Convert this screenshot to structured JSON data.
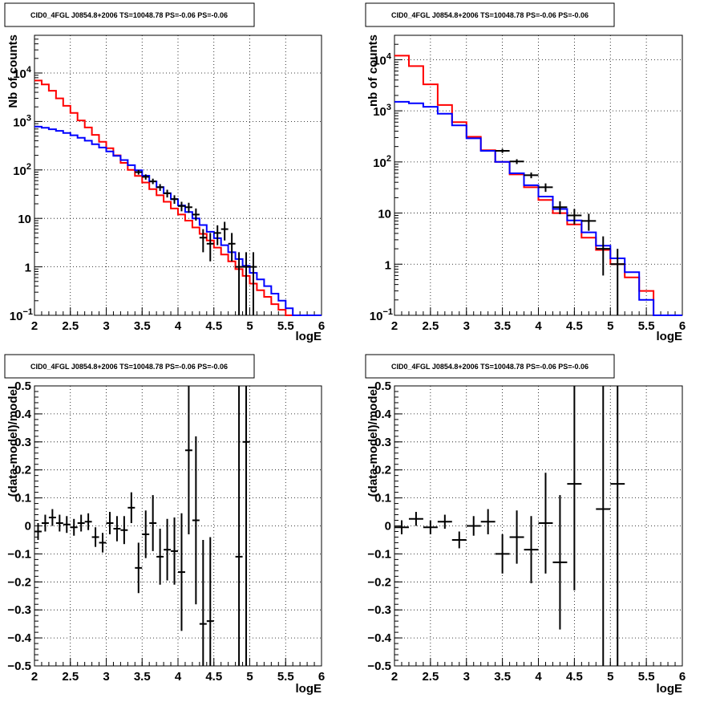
{
  "chart_data": [
    {
      "type": "step-histogram",
      "panel": "top-left",
      "title": "CID0_4FGL J0854.8+2006 TS=10048.78 PS=-0.06 PS=-0.06",
      "xlabel": "logE",
      "ylabel": "Nb of counts",
      "xlim": [
        2,
        6
      ],
      "ylim": [
        0.1,
        60000
      ],
      "yscale": "log",
      "grid": true,
      "x_ticks": [
        "2",
        "2.5",
        "3",
        "3.5",
        "4",
        "4.5",
        "5",
        "5.5",
        "6"
      ],
      "y_ticks": [
        {
          "v": 0.1,
          "m": "10",
          "e": "−1"
        },
        {
          "v": 1,
          "m": "1",
          "e": ""
        },
        {
          "v": 10,
          "m": "10",
          "e": ""
        },
        {
          "v": 100,
          "m": "10",
          "e": "2"
        },
        {
          "v": 1000,
          "m": "10",
          "e": "3"
        },
        {
          "v": 10000,
          "m": "10",
          "e": "4"
        }
      ],
      "series": [
        {
          "color": "#ff0000",
          "bin_width": 0.1,
          "x_start": 2.0,
          "values": [
            7000,
            5800,
            4300,
            3000,
            2100,
            1500,
            1050,
            750,
            530,
            380,
            280,
            200,
            140,
            100,
            75,
            55,
            40,
            30,
            22,
            16,
            12,
            9,
            6.5,
            4.8,
            3.5,
            2.5,
            1.8,
            1.3,
            0.9,
            0.65,
            0.45,
            0.33,
            0.24,
            0.17,
            0.13,
            0.1,
            0.1,
            0.1,
            0.1,
            0.1
          ]
        },
        {
          "color": "#0000ff",
          "bin_width": 0.1,
          "x_start": 2.0,
          "values": [
            780,
            740,
            690,
            640,
            580,
            520,
            460,
            400,
            340,
            290,
            240,
            195,
            160,
            125,
            98,
            76,
            58,
            44,
            33,
            25,
            18.5,
            13.5,
            10,
            7.3,
            5.3,
            3.9,
            2.8,
            2.0,
            1.45,
            1.05,
            0.75,
            0.55,
            0.4,
            0.28,
            0.2,
            0.14,
            0.1,
            0.1,
            0.1,
            0.1
          ]
        }
      ],
      "points": [
        {
          "x": 3.45,
          "xerr": 0.05,
          "y": 90,
          "ylo": 80,
          "yhi": 100
        },
        {
          "x": 3.55,
          "xerr": 0.05,
          "y": 72,
          "ylo": 63,
          "yhi": 81
        },
        {
          "x": 3.65,
          "xerr": 0.05,
          "y": 58,
          "ylo": 51,
          "yhi": 66
        },
        {
          "x": 3.75,
          "xerr": 0.05,
          "y": 44,
          "ylo": 37,
          "yhi": 51
        },
        {
          "x": 3.85,
          "xerr": 0.05,
          "y": 33,
          "ylo": 27,
          "yhi": 39
        },
        {
          "x": 3.95,
          "xerr": 0.05,
          "y": 25,
          "ylo": 20,
          "yhi": 30
        },
        {
          "x": 4.05,
          "xerr": 0.05,
          "y": 18,
          "ylo": 14,
          "yhi": 22
        },
        {
          "x": 4.15,
          "xerr": 0.05,
          "y": 17,
          "ylo": 13,
          "yhi": 21
        },
        {
          "x": 4.25,
          "xerr": 0.05,
          "y": 12,
          "ylo": 9,
          "yhi": 16
        },
        {
          "x": 4.35,
          "xerr": 0.05,
          "y": 4,
          "ylo": 2,
          "yhi": 6
        },
        {
          "x": 4.45,
          "xerr": 0.05,
          "y": 3,
          "ylo": 1.3,
          "yhi": 5
        },
        {
          "x": 4.55,
          "xerr": 0.05,
          "y": 5,
          "ylo": 2.8,
          "yhi": 7.2
        },
        {
          "x": 4.65,
          "xerr": 0.05,
          "y": 6,
          "ylo": 3.5,
          "yhi": 8.5
        },
        {
          "x": 4.75,
          "xerr": 0.05,
          "y": 3,
          "ylo": 1.3,
          "yhi": 5
        },
        {
          "x": 4.85,
          "xerr": 0.05,
          "y": 1,
          "ylo": 0.1,
          "yhi": 2
        },
        {
          "x": 4.95,
          "xerr": 0.05,
          "y": 1,
          "ylo": 0.1,
          "yhi": 2
        },
        {
          "x": 5.05,
          "xerr": 0.05,
          "y": 1,
          "ylo": 0.1,
          "yhi": 2
        }
      ]
    },
    {
      "type": "step-histogram",
      "panel": "top-right",
      "title": "CID0_4FGL J0854.8+2006 TS=10048.78 PS=-0.06 PS=-0.06",
      "xlabel": "logE",
      "ylabel": "nb of counts",
      "xlim": [
        2,
        6
      ],
      "ylim": [
        0.1,
        30000
      ],
      "yscale": "log",
      "grid": true,
      "x_ticks": [
        "2",
        "2.5",
        "3",
        "3.5",
        "4",
        "4.5",
        "5",
        "5.5",
        "6"
      ],
      "y_ticks": [
        {
          "v": 0.1,
          "m": "10",
          "e": "−1"
        },
        {
          "v": 1,
          "m": "1",
          "e": ""
        },
        {
          "v": 10,
          "m": "10",
          "e": ""
        },
        {
          "v": 100,
          "m": "10",
          "e": "2"
        },
        {
          "v": 1000,
          "m": "10",
          "e": "3"
        },
        {
          "v": 10000,
          "m": "10",
          "e": "4"
        }
      ],
      "series": [
        {
          "color": "#ff0000",
          "bin_width": 0.2,
          "x_start": 2.0,
          "values": [
            12000,
            7500,
            3300,
            1300,
            600,
            310,
            170,
            100,
            57,
            32,
            18,
            10,
            6,
            3.3,
            1.9,
            1.0,
            0.55,
            0.3,
            0.1,
            0.1
          ]
        },
        {
          "color": "#0000ff",
          "bin_width": 0.2,
          "x_start": 2.0,
          "values": [
            1500,
            1400,
            1200,
            880,
            520,
            290,
            165,
            100,
            60,
            35,
            21,
            12,
            7.2,
            4.2,
            2.3,
            1.3,
            0.7,
            0.2,
            0.1,
            0.1
          ]
        }
      ],
      "points": [
        {
          "x": 3.5,
          "xerr": 0.1,
          "y": 165,
          "ylo": 150,
          "yhi": 180
        },
        {
          "x": 3.7,
          "xerr": 0.1,
          "y": 102,
          "ylo": 91,
          "yhi": 113
        },
        {
          "x": 3.9,
          "xerr": 0.1,
          "y": 55,
          "ylo": 48,
          "yhi": 62
        },
        {
          "x": 4.1,
          "xerr": 0.1,
          "y": 32,
          "ylo": 26,
          "yhi": 38
        },
        {
          "x": 4.3,
          "xerr": 0.1,
          "y": 13,
          "ylo": 9.5,
          "yhi": 17
        },
        {
          "x": 4.5,
          "xerr": 0.1,
          "y": 9,
          "ylo": 6,
          "yhi": 12
        },
        {
          "x": 4.7,
          "xerr": 0.1,
          "y": 7,
          "ylo": 4.5,
          "yhi": 9.7
        },
        {
          "x": 4.9,
          "xerr": 0.1,
          "y": 2,
          "ylo": 0.6,
          "yhi": 3.5
        },
        {
          "x": 5.1,
          "xerr": 0.1,
          "y": 1,
          "ylo": 0.1,
          "yhi": 2
        }
      ]
    },
    {
      "type": "scatter",
      "panel": "bottom-left",
      "title": "CID0_4FGL J0854.8+2006 TS=10048.78 PS=-0.06 PS=-0.06",
      "xlabel": "logE",
      "ylabel": "(data-model)/model",
      "xlim": [
        2,
        6
      ],
      "ylim": [
        -0.5,
        0.5
      ],
      "grid": true,
      "x_ticks": [
        "2",
        "2.5",
        "3",
        "3.5",
        "4",
        "4.5",
        "5",
        "5.5",
        "6"
      ],
      "y_ticks": [
        "−0.5",
        "−0.4",
        "−0.3",
        "−0.2",
        "−0.1",
        "0",
        "0.1",
        "0.2",
        "0.3",
        "0.4",
        "0.5"
      ],
      "points": [
        {
          "x": 2.05,
          "xerr": 0.05,
          "y": -0.02,
          "err": 0.03
        },
        {
          "x": 2.15,
          "xerr": 0.05,
          "y": 0.01,
          "err": 0.03
        },
        {
          "x": 2.25,
          "xerr": 0.05,
          "y": 0.03,
          "err": 0.03
        },
        {
          "x": 2.35,
          "xerr": 0.05,
          "y": 0.01,
          "err": 0.03
        },
        {
          "x": 2.45,
          "xerr": 0.05,
          "y": 0.005,
          "err": 0.03
        },
        {
          "x": 2.55,
          "xerr": 0.05,
          "y": -0.005,
          "err": 0.03
        },
        {
          "x": 2.65,
          "xerr": 0.05,
          "y": 0.01,
          "err": 0.03
        },
        {
          "x": 2.75,
          "xerr": 0.05,
          "y": 0.015,
          "err": 0.03
        },
        {
          "x": 2.85,
          "xerr": 0.05,
          "y": -0.04,
          "err": 0.035
        },
        {
          "x": 2.95,
          "xerr": 0.05,
          "y": -0.06,
          "err": 0.035
        },
        {
          "x": 3.05,
          "xerr": 0.05,
          "y": 0.01,
          "err": 0.04
        },
        {
          "x": 3.15,
          "xerr": 0.05,
          "y": -0.01,
          "err": 0.045
        },
        {
          "x": 3.25,
          "xerr": 0.05,
          "y": -0.015,
          "err": 0.05
        },
        {
          "x": 3.35,
          "xerr": 0.05,
          "y": 0.065,
          "err": 0.055
        },
        {
          "x": 3.45,
          "xerr": 0.05,
          "y": -0.15,
          "err": 0.09
        },
        {
          "x": 3.55,
          "xerr": 0.05,
          "y": -0.03,
          "err": 0.085
        },
        {
          "x": 3.65,
          "xerr": 0.05,
          "y": 0.01,
          "err": 0.1
        },
        {
          "x": 3.75,
          "xerr": 0.05,
          "y": -0.11,
          "err": 0.1
        },
        {
          "x": 3.85,
          "xerr": 0.05,
          "y": -0.085,
          "err": 0.11
        },
        {
          "x": 3.95,
          "xerr": 0.05,
          "y": -0.09,
          "err": 0.12
        },
        {
          "x": 4.05,
          "xerr": 0.05,
          "y": -0.165,
          "err": 0.21
        },
        {
          "x": 4.15,
          "xerr": 0.05,
          "y": 0.27,
          "err": 0.3
        },
        {
          "x": 4.25,
          "xerr": 0.05,
          "y": 0.02,
          "err": 0.3
        },
        {
          "x": 4.35,
          "xerr": 0.05,
          "y": -0.35,
          "err": 0.3
        },
        {
          "x": 4.45,
          "xerr": 0.05,
          "y": -0.34,
          "err": 0.3
        },
        {
          "x": 4.85,
          "xerr": 0.05,
          "y": -0.11,
          "err": 0.9
        },
        {
          "x": 4.95,
          "xerr": 0.05,
          "y": 0.3,
          "err": 0.9
        }
      ]
    },
    {
      "type": "scatter",
      "panel": "bottom-right",
      "title": "CID0_4FGL J0854.8+2006 TS=10048.78 PS=-0.06 PS=-0.06",
      "xlabel": "logE",
      "ylabel": "(data-model)/model",
      "xlim": [
        2,
        6
      ],
      "ylim": [
        -0.5,
        0.5
      ],
      "grid": true,
      "x_ticks": [
        "2",
        "2.5",
        "3",
        "3.5",
        "4",
        "4.5",
        "5",
        "5.5",
        "6"
      ],
      "y_ticks": [
        "−0.5",
        "−0.4",
        "−0.3",
        "−0.2",
        "−0.1",
        "0",
        "0.1",
        "0.2",
        "0.3",
        "0.4",
        "0.5"
      ],
      "points": [
        {
          "x": 2.1,
          "xerr": 0.1,
          "y": -0.005,
          "err": 0.025
        },
        {
          "x": 2.3,
          "xerr": 0.1,
          "y": 0.025,
          "err": 0.025
        },
        {
          "x": 2.5,
          "xerr": 0.1,
          "y": -0.005,
          "err": 0.025
        },
        {
          "x": 2.7,
          "xerr": 0.1,
          "y": 0.015,
          "err": 0.025
        },
        {
          "x": 2.9,
          "xerr": 0.1,
          "y": -0.05,
          "err": 0.03
        },
        {
          "x": 3.1,
          "xerr": 0.1,
          "y": 0.0,
          "err": 0.035
        },
        {
          "x": 3.3,
          "xerr": 0.1,
          "y": 0.015,
          "err": 0.045
        },
        {
          "x": 3.5,
          "xerr": 0.1,
          "y": -0.1,
          "err": 0.07
        },
        {
          "x": 3.7,
          "xerr": 0.1,
          "y": -0.04,
          "err": 0.095
        },
        {
          "x": 3.9,
          "xerr": 0.1,
          "y": -0.085,
          "err": 0.12
        },
        {
          "x": 4.1,
          "xerr": 0.1,
          "y": 0.01,
          "err": 0.18
        },
        {
          "x": 4.3,
          "xerr": 0.1,
          "y": -0.13,
          "err": 0.24
        },
        {
          "x": 4.5,
          "xerr": 0.1,
          "y": 0.15,
          "err": 0.38
        },
        {
          "x": 4.9,
          "xerr": 0.1,
          "y": 0.06,
          "err": 0.9
        },
        {
          "x": 5.1,
          "xerr": 0.1,
          "y": 0.15,
          "err": 0.9
        }
      ]
    }
  ]
}
